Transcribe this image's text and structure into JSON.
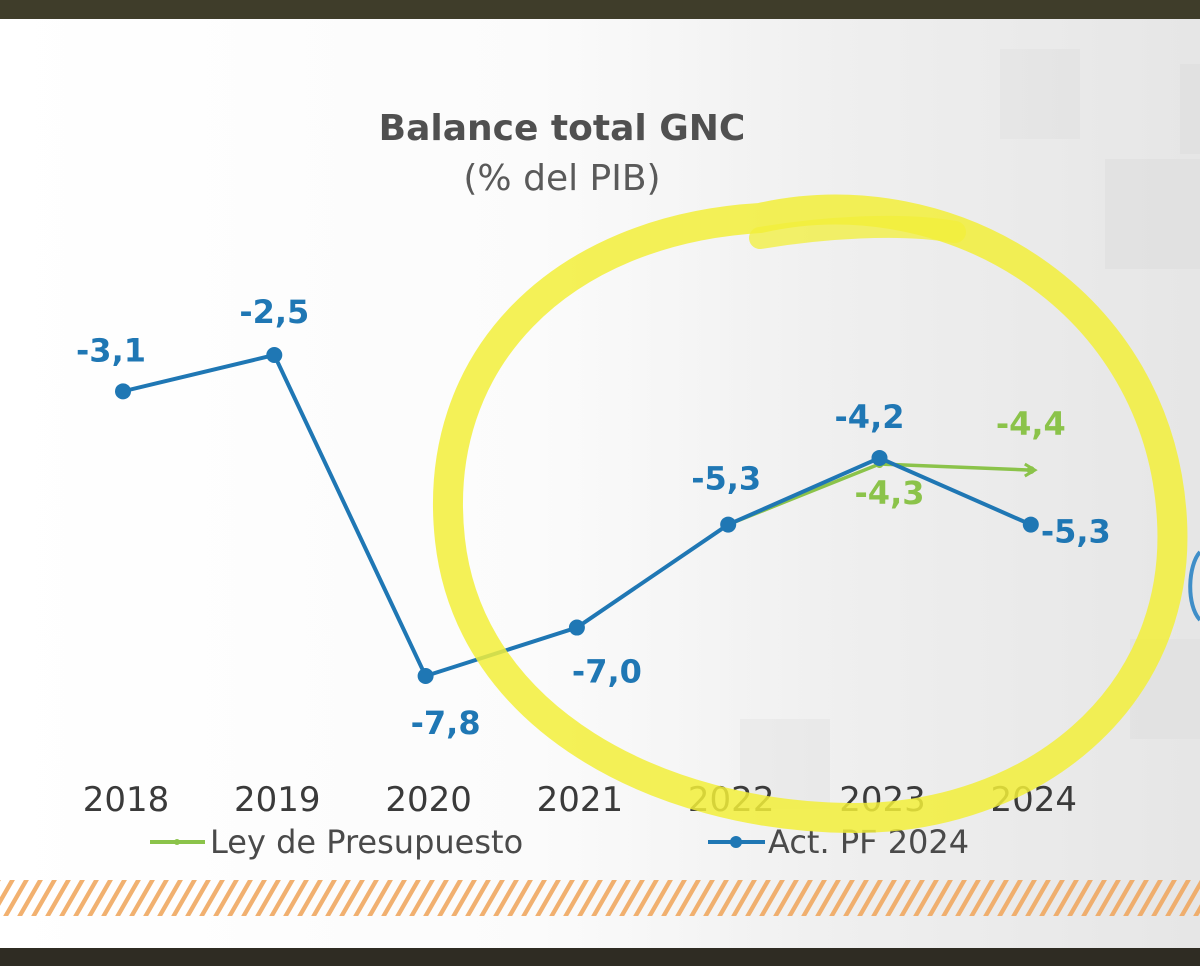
{
  "chart_data": {
    "type": "line",
    "title": "Balance total GNC",
    "subtitle": "(% del PIB)",
    "categories": [
      "2018",
      "2019",
      "2020",
      "2021",
      "2022",
      "2023",
      "2024"
    ],
    "ylim": [
      -8.5,
      -2.0
    ],
    "grid": false,
    "legend_placement": "bottom",
    "series": [
      {
        "name": "Ley de Presupuesto",
        "color": "#8bc34a",
        "x": [
          "2022",
          "2023",
          "2024"
        ],
        "values": [
          -5.3,
          -4.3,
          -4.4
        ],
        "labels": [
          "",
          "-4,3",
          "-4,4"
        ]
      },
      {
        "name": "Act. PF 2024",
        "color": "#1f77b4",
        "x": [
          "2018",
          "2019",
          "2020",
          "2021",
          "2022",
          "2023",
          "2024"
        ],
        "values": [
          -3.1,
          -2.5,
          -7.8,
          -7.0,
          -5.3,
          -4.2,
          -5.3
        ],
        "labels": [
          "-3,1",
          "-2,5",
          "-7,8",
          "-7,0",
          "-5,3",
          "-4,2",
          "-5,3"
        ]
      }
    ],
    "annotation": {
      "shape": "hand-drawn circle",
      "color": "#f2ef3a",
      "around": [
        "2021",
        "2022",
        "2023",
        "2024"
      ]
    }
  }
}
